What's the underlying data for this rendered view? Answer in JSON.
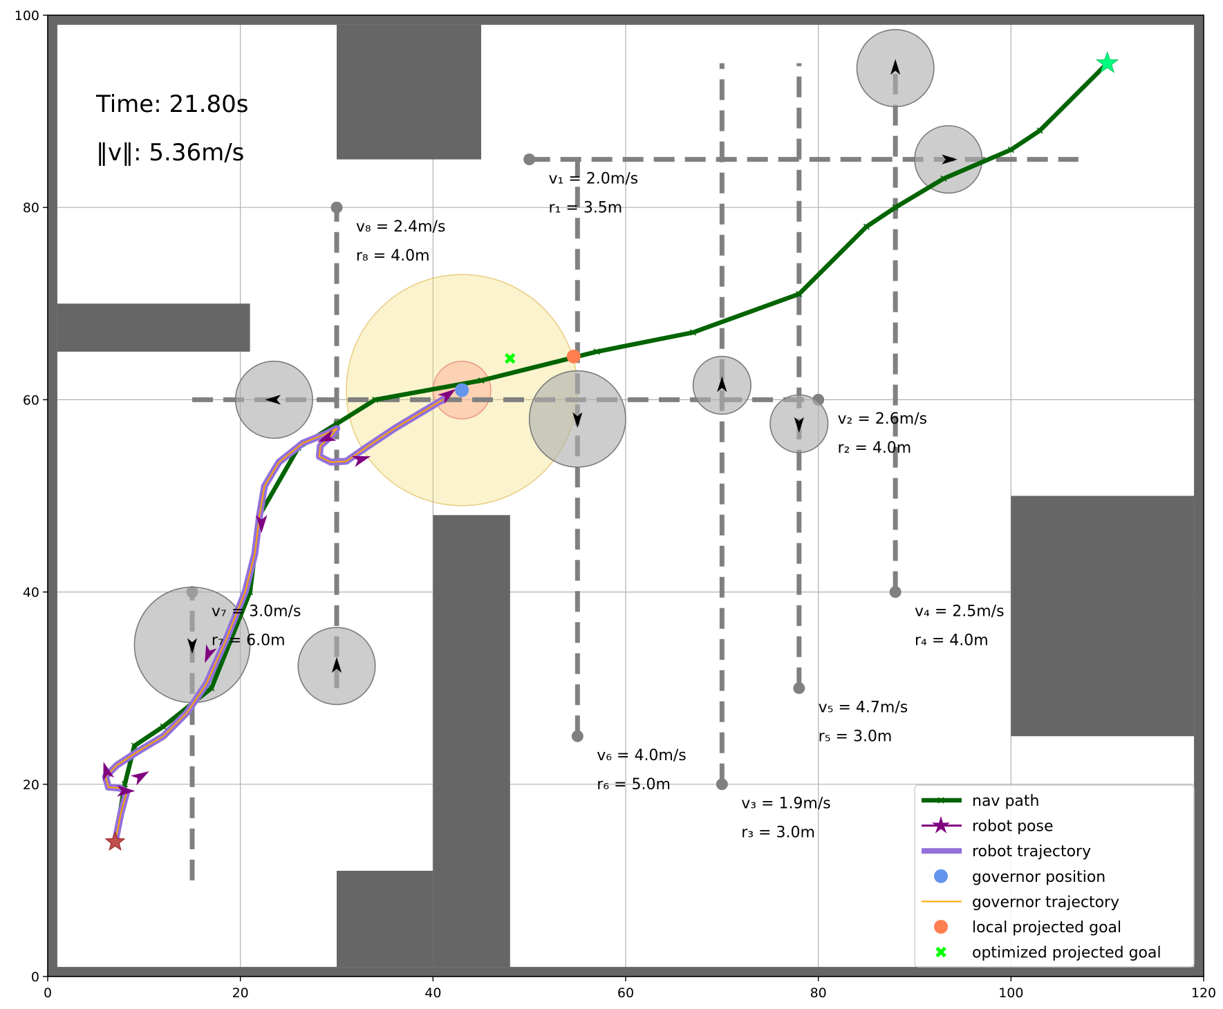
{
  "chart_data": {
    "type": "scatter",
    "xlim": [
      0,
      120
    ],
    "ylim": [
      0,
      100
    ],
    "xticks": [
      "0",
      "20",
      "40",
      "60",
      "80",
      "100",
      "120"
    ],
    "yticks": [
      "0",
      "20",
      "40",
      "60",
      "80",
      "100"
    ],
    "grid": true,
    "legend_position": "bottom-right",
    "info": {
      "time": "Time: 21.80s",
      "speed": "‖v‖: 5.36m/s"
    },
    "colors": {
      "obstacle": "#666666",
      "nav_path": "#006400",
      "robot_pose": "#800080",
      "trajectory_outer": "#9370DB",
      "governor_traj": "#FFA500",
      "governor_position": "#6495ED",
      "local_goal": "#FF7F50",
      "optimized_goal": "#00FF00",
      "goal_star": "#00FF7F",
      "dynamic_obstacle": "#bbbbbb",
      "track": "#808080"
    },
    "obstacles": [
      {
        "x0": 0,
        "y0": 0,
        "x1": 1,
        "y1": 100
      },
      {
        "x0": 119,
        "y0": 0,
        "x1": 120,
        "y1": 100
      },
      {
        "x0": 0,
        "y0": 0,
        "x1": 120,
        "y1": 1
      },
      {
        "x0": 0,
        "y0": 99,
        "x1": 120,
        "y1": 100
      },
      {
        "x0": 30,
        "y0": 85,
        "x1": 45,
        "y1": 99
      },
      {
        "x0": 1,
        "y0": 65,
        "x1": 21,
        "y1": 70
      },
      {
        "x0": 40,
        "y0": 1,
        "x1": 48,
        "y1": 48
      },
      {
        "x0": 30,
        "y0": 1,
        "x1": 40,
        "y1": 11
      },
      {
        "x0": 100,
        "y0": 25,
        "x1": 119,
        "y1": 50
      }
    ],
    "dynamic_obstacles": [
      {
        "id": 1,
        "v_label": "v₁ = 2.0m/s",
        "r_label": "r₁ = 3.5m",
        "line": [
          [
            50,
            85
          ],
          [
            107,
            85
          ]
        ],
        "endpoint": [
          50,
          85
        ],
        "center": [
          93.5,
          85
        ],
        "radius": 3.5,
        "dir": [
          1,
          0
        ],
        "label_pos": [
          52,
          83
        ]
      },
      {
        "id": 2,
        "v_label": "v₂ = 2.6m/s",
        "r_label": "r₂ = 4.0m",
        "line": [
          [
            15,
            60
          ],
          [
            80,
            60
          ]
        ],
        "endpoint": [
          80,
          60
        ],
        "center": [
          23.5,
          60
        ],
        "radius": 4.0,
        "dir": [
          -1,
          0
        ],
        "label_pos": [
          82,
          58
        ]
      },
      {
        "id": 3,
        "v_label": "v₃ = 1.9m/s",
        "r_label": "r₃ = 3.0m",
        "line": [
          [
            70,
            20
          ],
          [
            70,
            95
          ]
        ],
        "endpoint": [
          70,
          20
        ],
        "center": [
          70,
          61.5
        ],
        "radius": 3.0,
        "dir": [
          0,
          1
        ],
        "label_pos": [
          72,
          18
        ]
      },
      {
        "id": 4,
        "v_label": "v₄ = 2.5m/s",
        "r_label": "r₄ = 4.0m",
        "line": [
          [
            88,
            40
          ],
          [
            88,
            95
          ]
        ],
        "endpoint": [
          88,
          40
        ],
        "center": [
          88,
          94.5
        ],
        "radius": 4.0,
        "dir": [
          0,
          1
        ],
        "label_pos": [
          90,
          38
        ]
      },
      {
        "id": 5,
        "v_label": "v₅ = 4.7m/s",
        "r_label": "r₅ = 3.0m",
        "line": [
          [
            78,
            30
          ],
          [
            78,
            95
          ]
        ],
        "endpoint": [
          78,
          30
        ],
        "center": [
          78,
          57.5
        ],
        "radius": 3.0,
        "dir": [
          0,
          -1
        ],
        "label_pos": [
          80,
          28
        ]
      },
      {
        "id": 6,
        "v_label": "v₆ = 4.0m/s",
        "r_label": "r₆ = 5.0m",
        "line": [
          [
            55,
            25
          ],
          [
            55,
            85
          ]
        ],
        "endpoint": [
          55,
          25
        ],
        "center": [
          55,
          58
        ],
        "radius": 5.0,
        "dir": [
          0,
          -1
        ],
        "label_pos": [
          57,
          23
        ]
      },
      {
        "id": 7,
        "v_label": "v₇ = 3.0m/s",
        "r_label": "r₇ = 6.0m",
        "line": [
          [
            15,
            10
          ],
          [
            15,
            40
          ]
        ],
        "endpoint": [
          15,
          40
        ],
        "center": [
          15,
          34.5
        ],
        "radius": 6.0,
        "dir": [
          0,
          -1
        ],
        "label_pos": [
          17,
          38
        ]
      },
      {
        "id": 8,
        "v_label": "v₈ = 2.4m/s",
        "r_label": "r₈ = 4.0m",
        "line": [
          [
            30,
            30
          ],
          [
            30,
            80
          ]
        ],
        "endpoint": [
          30,
          80
        ],
        "center": [
          30,
          32.3
        ],
        "radius": 4.0,
        "dir": [
          0,
          1
        ],
        "label_pos": [
          32,
          78
        ]
      }
    ],
    "nav_path": [
      [
        7,
        14
      ],
      [
        8,
        20
      ],
      [
        9,
        24
      ],
      [
        12,
        26
      ],
      [
        17,
        30
      ],
      [
        21,
        40
      ],
      [
        22,
        48
      ],
      [
        26,
        55
      ],
      [
        30,
        57.5
      ],
      [
        34,
        60
      ],
      [
        45,
        62
      ],
      [
        57,
        65
      ],
      [
        67,
        67
      ],
      [
        78,
        71
      ],
      [
        85,
        78
      ],
      [
        88,
        80
      ],
      [
        93,
        83
      ],
      [
        100,
        86
      ],
      [
        103,
        88
      ],
      [
        110,
        95
      ]
    ],
    "robot_trajectory": [
      [
        7,
        14
      ],
      [
        7.6,
        17
      ],
      [
        8.2,
        19.2
      ],
      [
        7.5,
        19.6
      ],
      [
        6.3,
        19.7
      ],
      [
        6,
        20.8
      ],
      [
        7.2,
        22
      ],
      [
        9.5,
        23.5
      ],
      [
        12,
        25
      ],
      [
        14.5,
        27.5
      ],
      [
        16.5,
        30.5
      ],
      [
        18.5,
        35
      ],
      [
        20.5,
        40
      ],
      [
        21.5,
        44
      ],
      [
        22,
        48
      ],
      [
        22.5,
        51
      ],
      [
        24,
        53.5
      ],
      [
        26.5,
        55.5
      ],
      [
        29,
        56.5
      ],
      [
        30,
        57
      ],
      [
        29.5,
        56.3
      ],
      [
        28.3,
        55.2
      ],
      [
        28.2,
        54.1
      ],
      [
        29.4,
        53.5
      ],
      [
        31,
        53.6
      ],
      [
        33,
        55
      ],
      [
        36,
        57
      ],
      [
        39,
        58.8
      ],
      [
        41,
        60
      ]
    ],
    "robot_pose_markers": [
      {
        "p": [
          6.1,
          21.3
        ],
        "dir": [
          -0.3,
          1
        ]
      },
      {
        "p": [
          9.6,
          20.8
        ],
        "dir": [
          1,
          0.6
        ]
      },
      {
        "p": [
          8.0,
          19.3
        ],
        "dir": [
          1,
          0
        ]
      },
      {
        "p": [
          16.7,
          33.6
        ],
        "dir": [
          -0.4,
          -1
        ]
      },
      {
        "p": [
          22.2,
          47.2
        ],
        "dir": [
          0,
          -1
        ]
      },
      {
        "p": [
          29.0,
          56.0
        ],
        "dir": [
          -1,
          -0.4
        ]
      },
      {
        "p": [
          32.5,
          53.8
        ],
        "dir": [
          1,
          0.3
        ]
      },
      {
        "p": [
          41.5,
          60.5
        ],
        "dir": [
          1,
          0.7
        ]
      }
    ],
    "robot_pose": [
      7,
      14
    ],
    "goal": [
      110,
      95
    ],
    "governor_position": [
      43,
      61
    ],
    "governor_radius": 3.0,
    "governor_range_radius": 12.0,
    "local_projected_goal": [
      54.6,
      64.5
    ],
    "optimized_projected_goal": [
      48,
      64.3
    ],
    "legend": [
      {
        "label": "nav path",
        "kind": "nav"
      },
      {
        "label": "robot pose",
        "kind": "pose"
      },
      {
        "label": "robot trajectory",
        "kind": "traj"
      },
      {
        "label": "governor position",
        "kind": "gpos"
      },
      {
        "label": "governor trajectory",
        "kind": "gtraj"
      },
      {
        "label": "local projected goal",
        "kind": "lgoal"
      },
      {
        "label": "optimized projected goal",
        "kind": "ogoal"
      }
    ]
  }
}
